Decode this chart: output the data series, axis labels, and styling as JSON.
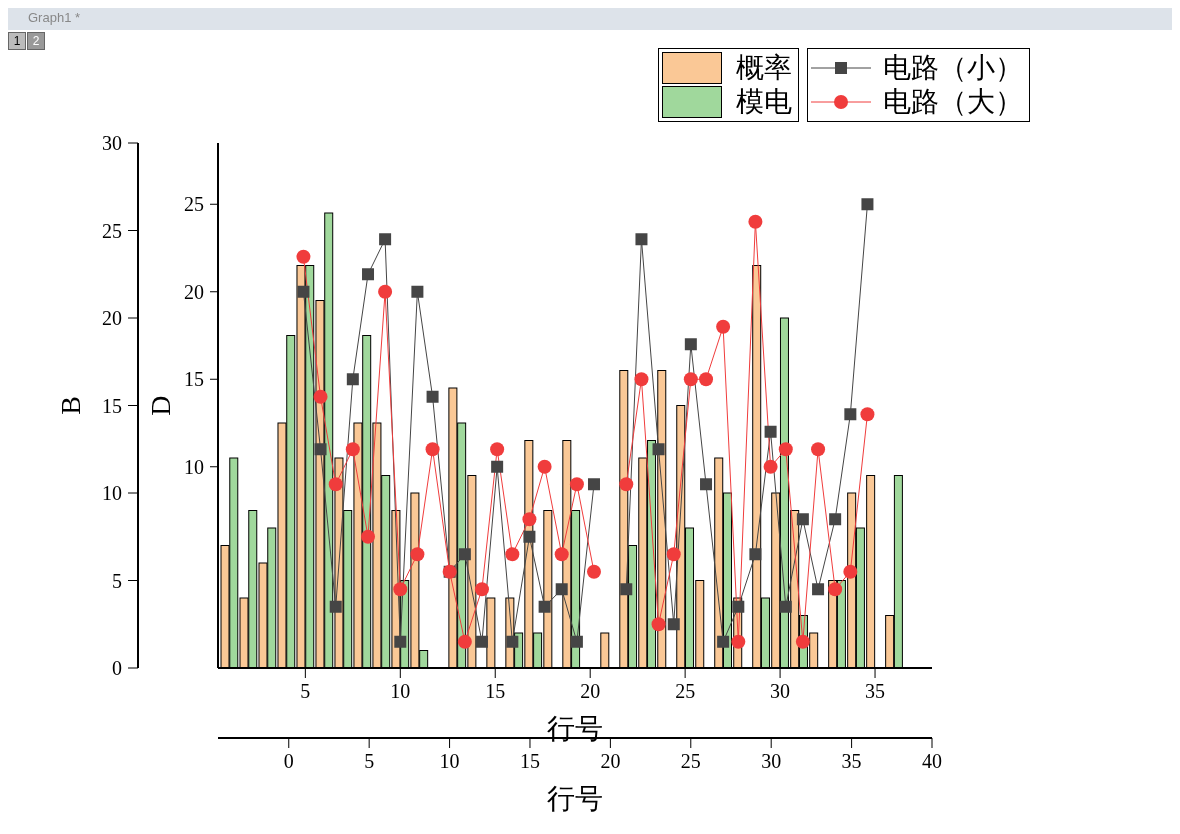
{
  "chart_data": {
    "type": "bar",
    "xlabel": "行号",
    "x2label": "行号",
    "ylabel": "B",
    "y2label": "D",
    "annotations": [
      "Graph1 *",
      "1",
      "2"
    ],
    "x": [
      1,
      2,
      3,
      4,
      5,
      6,
      7,
      8,
      9,
      10,
      11,
      12,
      13,
      14,
      15,
      16,
      17,
      18,
      19,
      20,
      21,
      22,
      23,
      24,
      25,
      26,
      27,
      28,
      29,
      30,
      31,
      32,
      33,
      34,
      35,
      36
    ],
    "xlim": [
      0.4,
      38
    ],
    "xticks": [
      5,
      10,
      15,
      20,
      25,
      30,
      35
    ],
    "x2lim": [
      -4.4,
      40
    ],
    "x2ticks": [
      0,
      5,
      10,
      15,
      20,
      25,
      30,
      35,
      40
    ],
    "ylim": [
      0,
      30
    ],
    "yticks": [
      0,
      5,
      10,
      15,
      20,
      25,
      30
    ],
    "y2lim": [
      -1.5,
      28.5
    ],
    "y2ticks": [
      10,
      15,
      20,
      25
    ],
    "legend": "top right",
    "series": [
      {
        "name": "概率",
        "color": "#fac896",
        "values": [
          7,
          4,
          6,
          14,
          23,
          21,
          12,
          14,
          14,
          9,
          10,
          null,
          16,
          11,
          4,
          4,
          13,
          9,
          13,
          null,
          2,
          17,
          12,
          17,
          15,
          5,
          12,
          4,
          23,
          10,
          9,
          2,
          5,
          10,
          11,
          3
        ]
      },
      {
        "name": "模电",
        "color": "#a0d89c",
        "values": [
          12,
          9,
          8,
          19,
          23,
          26,
          9,
          19,
          11,
          5,
          1,
          null,
          14,
          null,
          null,
          2,
          2,
          null,
          9,
          null,
          null,
          7,
          13,
          null,
          8,
          null,
          10,
          null,
          4,
          20,
          3,
          null,
          5,
          8,
          null,
          11
        ]
      },
      {
        "name": "电路（小）",
        "type": "line",
        "axis": "y2",
        "marker": "square",
        "color": "#454545",
        "x": [
          4.9,
          5.8,
          6.6,
          7.5,
          8.3,
          9.2,
          10.0,
          10.9,
          11.7,
          12.6,
          13.4,
          14.3,
          15.1,
          15.9,
          16.8,
          17.6,
          18.5,
          19.3,
          20.2,
          21.0,
          21.9,
          22.7,
          23.6,
          24.4,
          25.3,
          26.1,
          27.0,
          27.8,
          28.7,
          29.5,
          30.3,
          31.2,
          32.0,
          32.9,
          33.7,
          34.6
        ],
        "values": [
          20,
          11,
          2,
          15,
          21,
          23,
          0,
          20,
          14,
          4,
          5,
          0,
          10,
          0,
          6,
          2,
          3,
          0,
          9,
          null,
          3,
          23,
          11,
          1,
          17,
          9,
          0,
          2,
          5,
          12,
          2,
          7,
          3,
          7,
          13,
          25
        ]
      },
      {
        "name": "电路（大）",
        "type": "line",
        "axis": "y2",
        "marker": "circle",
        "color": "#f03c3c",
        "x": [
          4.9,
          5.8,
          6.6,
          7.5,
          8.3,
          9.2,
          10.0,
          10.9,
          11.7,
          12.6,
          13.4,
          14.3,
          15.1,
          15.9,
          16.8,
          17.6,
          18.5,
          19.3,
          20.2,
          21.0,
          21.9,
          22.7,
          23.6,
          24.4,
          25.3,
          26.1,
          27.0,
          27.8,
          28.7,
          29.5,
          30.3,
          31.2,
          32.0,
          32.9,
          33.7,
          34.6
        ],
        "values": [
          22,
          14,
          9,
          11,
          6,
          20,
          3,
          5,
          11,
          4,
          0,
          3,
          11,
          5,
          7,
          10,
          5,
          9,
          4,
          null,
          9,
          15,
          1,
          5,
          15,
          15,
          18,
          0,
          24,
          10,
          11,
          0,
          11,
          3,
          4,
          13
        ]
      }
    ]
  }
}
